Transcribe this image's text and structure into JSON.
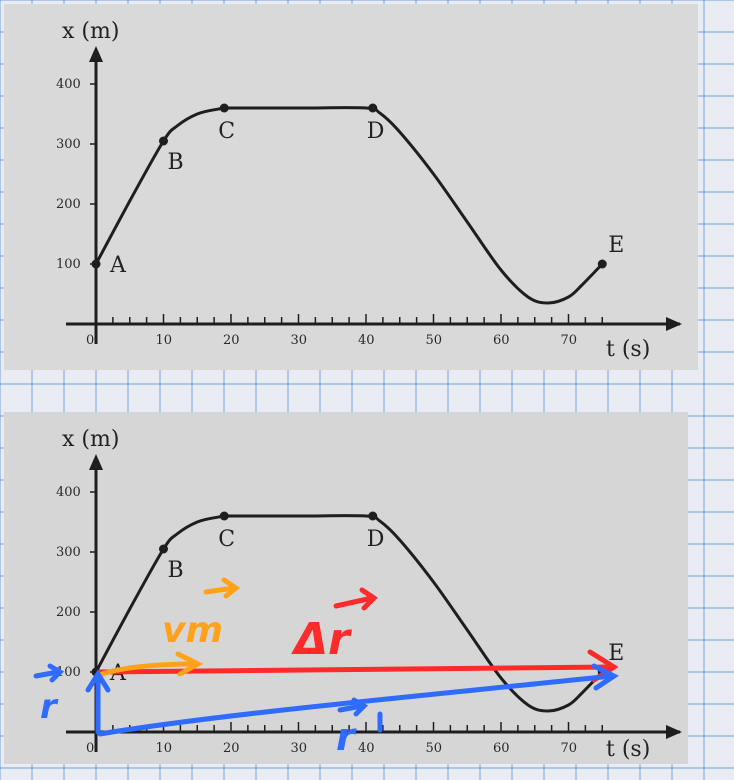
{
  "chart_data": [
    {
      "type": "line",
      "ylabel": "x (m)",
      "xlabel": "t (s)",
      "xlim": [
        0,
        75
      ],
      "ylim": [
        0,
        400
      ],
      "x_ticks": [
        "0",
        "10",
        "20",
        "30",
        "40",
        "50",
        "60",
        "70"
      ],
      "y_ticks": [
        "100",
        "200",
        "300",
        "400"
      ],
      "grid": false,
      "series": [
        {
          "x": [
            0,
            5,
            10,
            12,
            15,
            18,
            20,
            30,
            40,
            42,
            45,
            50,
            55,
            60,
            64,
            67,
            70,
            72,
            75
          ],
          "y": [
            100,
            205,
            305,
            330,
            350,
            358,
            360,
            360,
            360,
            352,
            320,
            250,
            170,
            90,
            45,
            35,
            45,
            65,
            100
          ]
        }
      ],
      "points": [
        {
          "label": "A",
          "x": 0,
          "y": 100
        },
        {
          "label": "B",
          "x": 10,
          "y": 305
        },
        {
          "label": "C",
          "x": 19,
          "y": 360
        },
        {
          "label": "D",
          "x": 41,
          "y": 360
        },
        {
          "label": "E",
          "x": 75,
          "y": 100
        }
      ]
    },
    {
      "type": "line",
      "ylabel": "x (m)",
      "xlabel": "t (s)",
      "xlim": [
        0,
        75
      ],
      "ylim": [
        0,
        400
      ],
      "x_ticks": [
        "0",
        "10",
        "20",
        "30",
        "40",
        "50",
        "60",
        "70"
      ],
      "y_ticks": [
        "100",
        "200",
        "300",
        "400"
      ],
      "grid": false,
      "series": [
        {
          "x": [
            0,
            5,
            10,
            12,
            15,
            18,
            20,
            30,
            40,
            42,
            45,
            50,
            55,
            60,
            64,
            67,
            70,
            72,
            75
          ],
          "y": [
            100,
            205,
            305,
            330,
            350,
            358,
            360,
            360,
            360,
            352,
            320,
            250,
            170,
            90,
            45,
            35,
            45,
            65,
            100
          ]
        }
      ],
      "points": [
        {
          "label": "A",
          "x": 0,
          "y": 100
        },
        {
          "label": "B",
          "x": 10,
          "y": 305
        },
        {
          "label": "C",
          "x": 19,
          "y": 360
        },
        {
          "label": "D",
          "x": 41,
          "y": 360
        },
        {
          "label": "E",
          "x": 75,
          "y": 100
        }
      ],
      "annotations": [
        {
          "text": "Δr",
          "color": "#ff2a2a"
        },
        {
          "text": "vm",
          "color": "#ffa21a"
        },
        {
          "text": "r",
          "color": "#2f6bff"
        },
        {
          "text": "r",
          "color": "#2f6bff"
        }
      ]
    }
  ],
  "colors": {
    "photo_bg": "#d8d8d8",
    "curve": "#1e1e1e",
    "red_arrow": "#ff2a2a",
    "orange_arrow": "#ffa21a",
    "blue_arrow": "#2f6bff",
    "grid_paper_lines": "#3a7bd5"
  }
}
